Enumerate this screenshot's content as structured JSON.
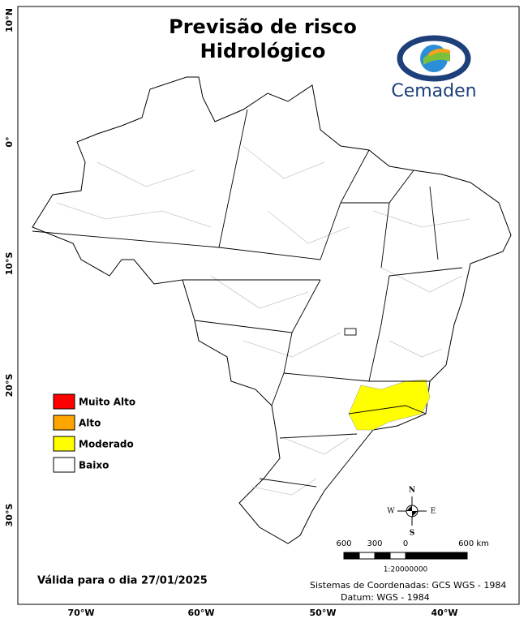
{
  "title": [
    "Previsão de risco",
    "Hidrológico"
  ],
  "logo": "Cemaden",
  "legend": [
    {
      "label": "Muito Alto",
      "color": "#ff0000"
    },
    {
      "label": "Alto",
      "color": "#ffa500"
    },
    {
      "label": "Moderado",
      "color": "#ffff00"
    },
    {
      "label": "Baixo",
      "color": "#ffffff"
    }
  ],
  "validity": "Válida para o dia 27/01/2025",
  "compass": {
    "n": "N",
    "s": "S",
    "e": "E",
    "w": "W"
  },
  "scale": {
    "labels": [
      "600",
      "300",
      "0",
      "600 km"
    ],
    "ratio": "1:20000000"
  },
  "crs": [
    "Sistemas de Coordenadas: GCS WGS - 1984",
    "Datum: WGS - 1984"
  ],
  "lat_labels": [
    "10°N",
    "0°",
    "10°S",
    "20°S",
    "30°S"
  ],
  "lon_labels": [
    "70°W",
    "60°W",
    "50°W",
    "40°W"
  ]
}
